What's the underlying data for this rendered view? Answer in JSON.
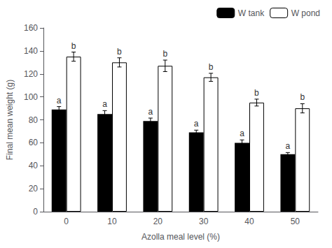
{
  "chart_data": {
    "type": "bar",
    "categories": [
      "0",
      "10",
      "20",
      "30",
      "40",
      "50"
    ],
    "series": [
      {
        "name": "W tank",
        "color": "#000000",
        "values": [
          89,
          85,
          79,
          69,
          60,
          50
        ],
        "errors": [
          2.5,
          3.0,
          2.5,
          2.0,
          2.5,
          1.5
        ]
      },
      {
        "name": "W pond",
        "color": "#ffffff",
        "values": [
          135,
          130,
          127,
          117,
          95,
          90
        ],
        "errors": [
          4.0,
          4.0,
          5.0,
          3.5,
          3.0,
          4.0
        ]
      }
    ],
    "annotations": [
      {
        "category": "0",
        "series": "W tank",
        "text": "a"
      },
      {
        "category": "0",
        "series": "W pond",
        "text": "b"
      },
      {
        "category": "10",
        "series": "W tank",
        "text": "a"
      },
      {
        "category": "10",
        "series": "W pond",
        "text": "b"
      },
      {
        "category": "20",
        "series": "W tank",
        "text": "a"
      },
      {
        "category": "20",
        "series": "W pond",
        "text": "b"
      },
      {
        "category": "30",
        "series": "W tank",
        "text": "a"
      },
      {
        "category": "30",
        "series": "W pond",
        "text": "b"
      },
      {
        "category": "40",
        "series": "W tank",
        "text": "a"
      },
      {
        "category": "40",
        "series": "W pond",
        "text": "b"
      },
      {
        "category": "50",
        "series": "W tank",
        "text": "a"
      },
      {
        "category": "50",
        "series": "W pond",
        "text": "b"
      }
    ],
    "xlabel": "Azolla meal level (%)",
    "ylabel": "Final mean weight (g)",
    "ylim": [
      0,
      160
    ],
    "yticks": [
      0,
      20,
      40,
      60,
      80,
      100,
      120,
      140,
      160
    ],
    "legend": "upper right",
    "grid": false
  }
}
